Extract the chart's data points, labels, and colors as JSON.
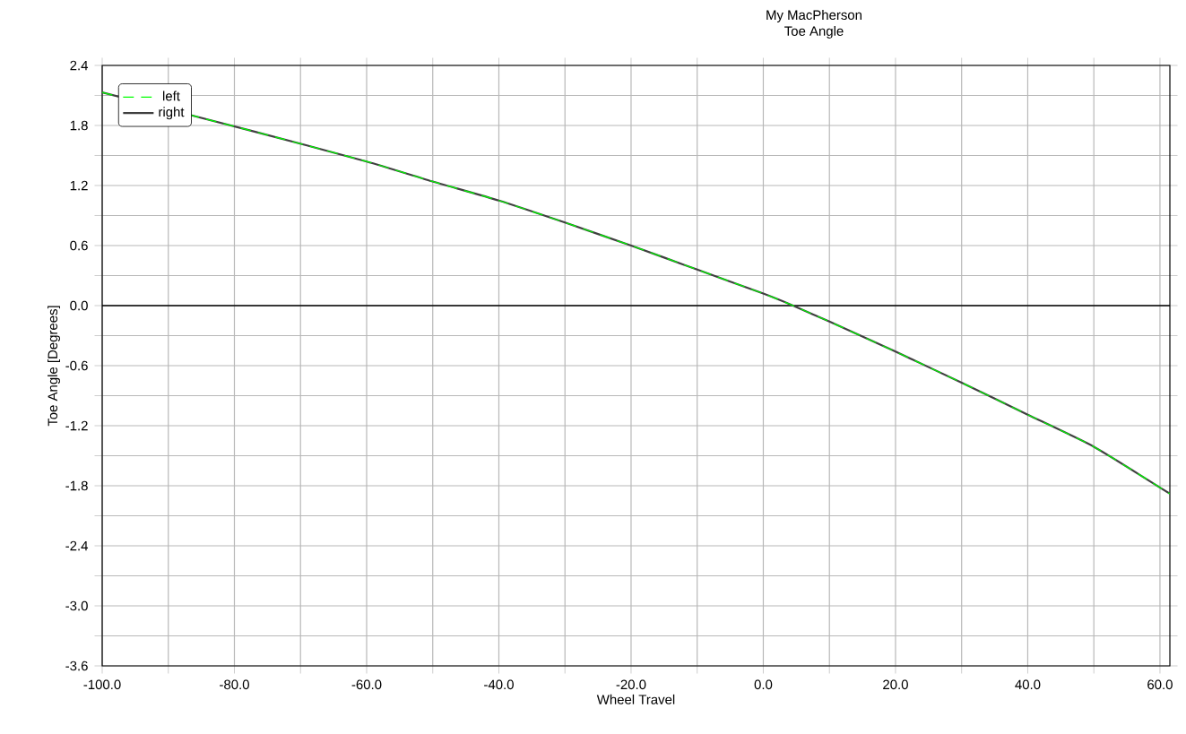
{
  "chart_data": {
    "type": "line",
    "title": "My MacPherson",
    "subtitle": "Toe Angle",
    "xlabel": "Wheel Travel",
    "ylabel": "Toe Angle [Degrees]",
    "x": [
      -100,
      -77.6,
      -60,
      -50,
      -40,
      -30,
      -20,
      -10,
      0,
      4.5,
      10,
      20,
      30,
      40,
      50,
      61.5
    ],
    "series": [
      {
        "name": "left",
        "color": "#00ff00",
        "line_style": "dashed",
        "values": [
          2.13,
          1.75,
          1.44,
          1.24,
          1.05,
          0.83,
          0.6,
          0.36,
          0.12,
          0,
          -0.16,
          -0.46,
          -0.77,
          -1.09,
          -1.41,
          -1.88
        ]
      },
      {
        "name": "right",
        "color": "#404040",
        "line_style": "solid",
        "values": [
          2.13,
          1.75,
          1.44,
          1.24,
          1.05,
          0.83,
          0.6,
          0.36,
          0.12,
          0,
          -0.16,
          -0.46,
          -0.77,
          -1.09,
          -1.41,
          -1.88
        ]
      }
    ],
    "xlim": [
      -100,
      61.5
    ],
    "ylim": [
      -3.6,
      2.4
    ],
    "xticks": [
      {
        "value": -100,
        "label": "-100.0"
      },
      {
        "value": -90,
        "label": null
      },
      {
        "value": -80,
        "label": "-80.0"
      },
      {
        "value": -70,
        "label": null
      },
      {
        "value": -60,
        "label": "-60.0"
      },
      {
        "value": -50,
        "label": null
      },
      {
        "value": -40,
        "label": "-40.0"
      },
      {
        "value": -30,
        "label": null
      },
      {
        "value": -20,
        "label": "-20.0"
      },
      {
        "value": -10,
        "label": null
      },
      {
        "value": 0,
        "label": "0.0"
      },
      {
        "value": 10,
        "label": null
      },
      {
        "value": 20,
        "label": "20.0"
      },
      {
        "value": 30,
        "label": null
      },
      {
        "value": 40,
        "label": "40.0"
      },
      {
        "value": 50,
        "label": null
      },
      {
        "value": 60,
        "label": "60.0"
      }
    ],
    "yticks": [
      {
        "value": -3.6,
        "label": "-3.6"
      },
      {
        "value": -3.3,
        "label": null
      },
      {
        "value": -3.0,
        "label": "-3.0"
      },
      {
        "value": -2.7,
        "label": null
      },
      {
        "value": -2.4,
        "label": "-2.4"
      },
      {
        "value": -2.1,
        "label": null
      },
      {
        "value": -1.8,
        "label": "-1.8"
      },
      {
        "value": -1.5,
        "label": null
      },
      {
        "value": -1.2,
        "label": "-1.2"
      },
      {
        "value": -0.9,
        "label": null
      },
      {
        "value": -0.6,
        "label": "-0.6"
      },
      {
        "value": -0.3,
        "label": null
      },
      {
        "value": 0,
        "label": "0.0"
      },
      {
        "value": 0.3,
        "label": null
      },
      {
        "value": 0.6,
        "label": "0.6"
      },
      {
        "value": 0.9,
        "label": null
      },
      {
        "value": 1.2,
        "label": "1.2"
      },
      {
        "value": 1.5,
        "label": null
      },
      {
        "value": 1.8,
        "label": "1.8"
      },
      {
        "value": 2.1,
        "label": null
      },
      {
        "value": 2.4,
        "label": "2.4"
      }
    ],
    "ref_lines": [
      {
        "axis": "y",
        "value": 0,
        "color": "#000000"
      }
    ],
    "grid": true,
    "legend": "top left",
    "marker": "none"
  }
}
